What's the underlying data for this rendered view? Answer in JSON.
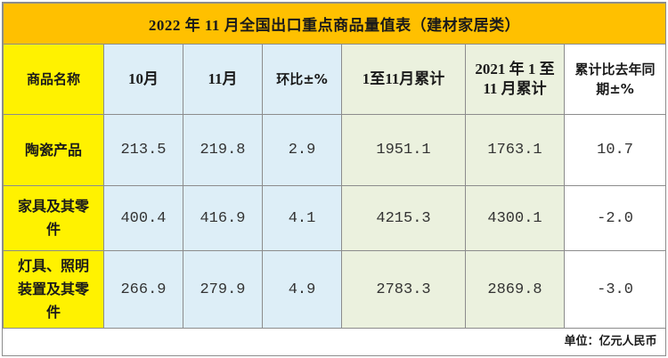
{
  "title": "2022 年 11 月全国出口重点商品量值表（建材家居类）",
  "headers": {
    "name": "商品名称",
    "oct": "10月",
    "nov": "11月",
    "mom": "环比±%",
    "cum": "1至11月累计",
    "prev_cum": "2021 年 1 至 11 月累计",
    "yoy": "累计比去年同期±%"
  },
  "rows": [
    {
      "name": "陶瓷产品",
      "oct": "213.5",
      "nov": "219.8",
      "mom": "2.9",
      "cum": "1951.1",
      "prev_cum": "1763.1",
      "yoy": "10.7"
    },
    {
      "name": "家具及其零件",
      "oct": "400.4",
      "nov": "416.9",
      "mom": "4.1",
      "cum": "4215.3",
      "prev_cum": "4300.1",
      "yoy": "-2.0"
    },
    {
      "name": "灯具、照明装置及其零件",
      "oct": "266.9",
      "nov": "279.9",
      "mom": "4.9",
      "cum": "2783.3",
      "prev_cum": "2869.8",
      "yoy": "-3.0"
    }
  ],
  "unit": "单位：亿元人民币",
  "colors": {
    "title_bg": "#FFC000",
    "name_col_bg": "#FFF200",
    "monthly_bg": "#DDEEF7",
    "cumulative_bg": "#EBF1DE"
  }
}
